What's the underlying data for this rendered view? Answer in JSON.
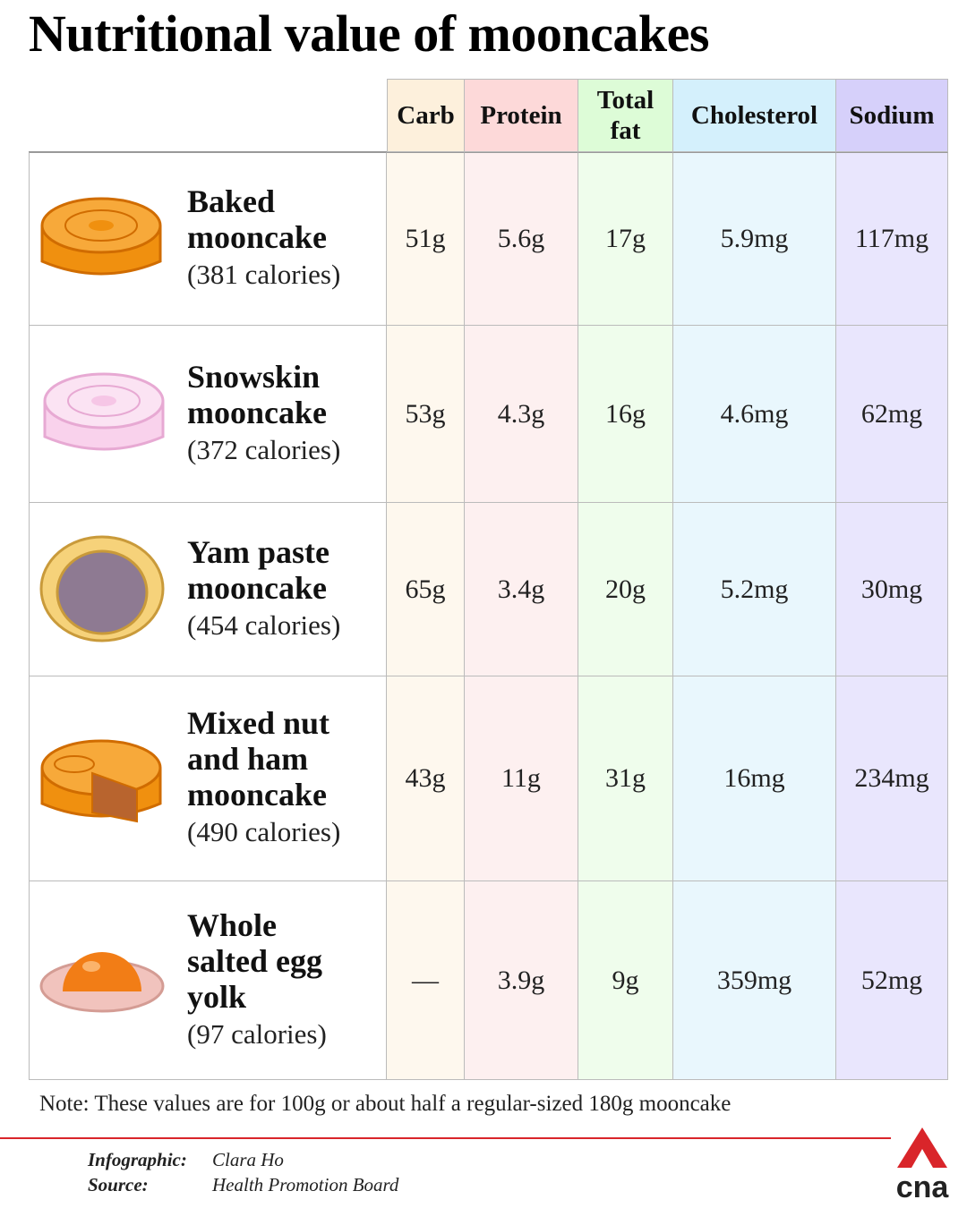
{
  "title": "Nutritional value of mooncakes",
  "table": {
    "columns": [
      "Carb",
      "Protein",
      "Total fat",
      "Cholesterol",
      "Sodium"
    ],
    "rows": [
      {
        "name": [
          "Baked",
          "mooncake"
        ],
        "calories": "(381 calories)",
        "values": [
          "51g",
          "5.6g",
          "17g",
          "5.9mg",
          "117mg"
        ]
      },
      {
        "name": [
          "Snowskin",
          "mooncake"
        ],
        "calories": "(372 calories)",
        "values": [
          "53g",
          "4.3g",
          "16g",
          "4.6mg",
          "62mg"
        ]
      },
      {
        "name": [
          "Yam paste",
          "mooncake"
        ],
        "calories": "(454 calories)",
        "values": [
          "65g",
          "3.4g",
          "20g",
          "5.2mg",
          "30mg"
        ]
      },
      {
        "name": [
          "Mixed nut",
          "and ham",
          "mooncake"
        ],
        "calories": "(490 calories)",
        "values": [
          "43g",
          "11g",
          "31g",
          "16mg",
          "234mg"
        ]
      },
      {
        "name": [
          "Whole",
          "salted egg",
          "yolk"
        ],
        "calories": "(97 calories)",
        "values": [
          "—",
          "3.9g",
          "9g",
          "359mg",
          "52mg"
        ]
      }
    ]
  },
  "note": "Note: These values are for 100g or about half a regular-sized 180g mooncake",
  "credits": [
    {
      "label": "Infographic:",
      "value": "Clara Ho"
    },
    {
      "label": "Source:",
      "value": "Health Promotion Board"
    }
  ],
  "logo": "cna"
}
